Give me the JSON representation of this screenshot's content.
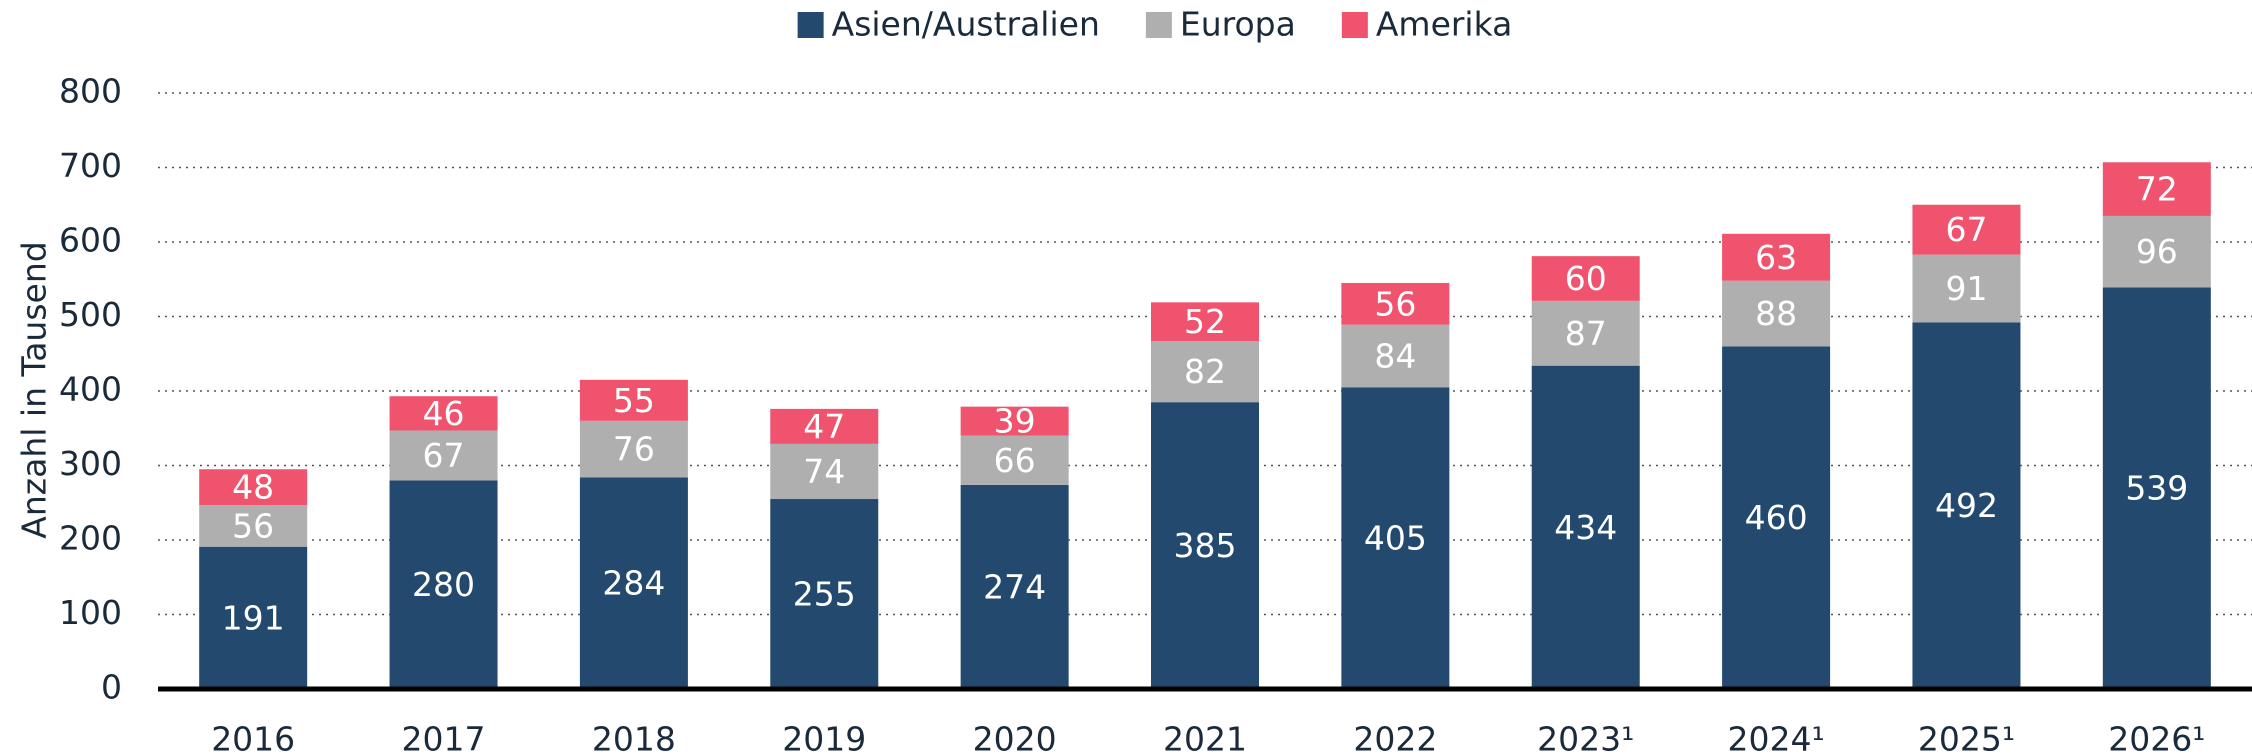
{
  "chart_data": {
    "type": "stacked_bar",
    "y_label": "Anzahl in Tausend",
    "categories": [
      "2016",
      "2017",
      "2018",
      "2019",
      "2020",
      "2021",
      "2022",
      "2023¹",
      "2024¹",
      "2025¹",
      "2026¹"
    ],
    "series": [
      {
        "name": "Asien/Australien",
        "color": "#234a6e",
        "values": [
          191,
          280,
          284,
          255,
          274,
          385,
          405,
          434,
          460,
          492,
          539
        ]
      },
      {
        "name": "Europa",
        "color": "#afafaf",
        "values": [
          56,
          67,
          76,
          74,
          66,
          82,
          84,
          87,
          88,
          91,
          96
        ]
      },
      {
        "name": "Amerika",
        "color": "#f0536e",
        "values": [
          48,
          46,
          55,
          47,
          39,
          52,
          56,
          60,
          63,
          67,
          72
        ]
      }
    ],
    "ylim": [
      0,
      800
    ],
    "yticks": [
      0,
      100,
      200,
      300,
      400,
      500,
      600,
      700,
      800
    ],
    "grid": true,
    "legend": "top"
  }
}
